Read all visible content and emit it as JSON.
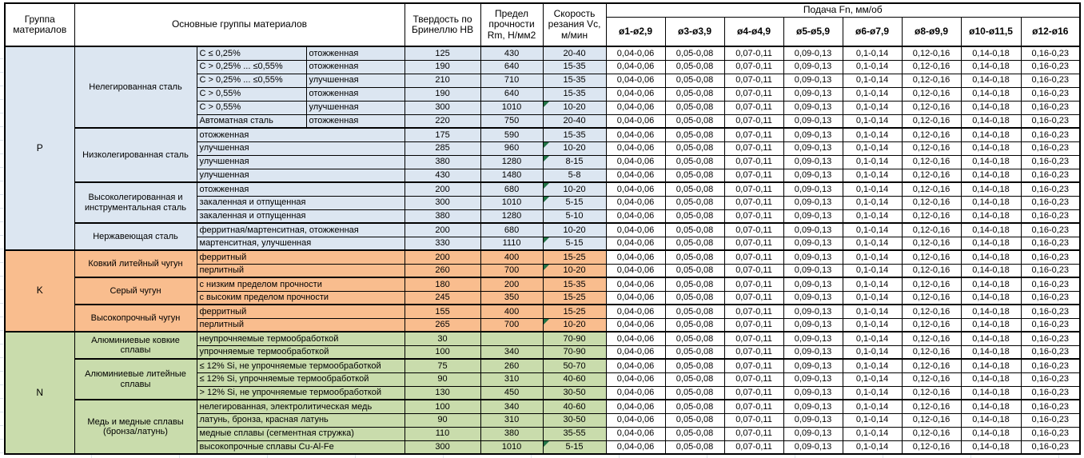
{
  "header": {
    "col_group": "Группа материалов",
    "col_main_groups": "Основные группы материалов",
    "col_hardness": "Твердость по Бринеллю HB",
    "col_strength": "Предел прочности Rm, Н/мм2",
    "col_speed": "Скорость резания Vc, м/мин",
    "feed_title": "Подача Fn, мм/об",
    "feed_columns": [
      "ø1-ø2,9",
      "ø3-ø3,9",
      "ø4-ø4,9",
      "ø5-ø5,9",
      "ø6-ø7,9",
      "ø8-ø9,9",
      "ø10-ø11,5",
      "ø12-ø16"
    ]
  },
  "feed_values": [
    "0,04-0,06",
    "0,05-0,08",
    "0,07-0,11",
    "0,09-0,13",
    "0,1-0,14",
    "0,12-0,16",
    "0,14-0,18",
    "0,16-0,23"
  ],
  "colors": {
    "section_p": "#dce6f1",
    "section_k": "#f9bd8e",
    "section_n": "#c9dcac",
    "error_indicator": "#217346",
    "border": "#000000"
  },
  "sections": [
    {
      "letter": "P",
      "key": "p",
      "subgroups": [
        {
          "name": "Нелегированная сталь",
          "rows": [
            {
              "c1": "C ≤ 0,25%",
              "c2": "отожженная",
              "hb": "125",
              "rm": "430",
              "vc": "20-40"
            },
            {
              "c1": "C > 0,25% ... ≤0,55%",
              "c2": "отожженная",
              "hb": "190",
              "rm": "640",
              "vc": "15-35"
            },
            {
              "c1": "C > 0,25% ... ≤0,55%",
              "c2": "улучшенная",
              "hb": "210",
              "rm": "710",
              "vc": "15-35"
            },
            {
              "c1": "C > 0,55%",
              "c2": "отожженная",
              "hb": "190",
              "rm": "640",
              "vc": "15-35"
            },
            {
              "c1": "C > 0,55%",
              "c2": "улучшенная",
              "hb": "300",
              "rm": "1010",
              "vc": "10-20",
              "tri": true
            },
            {
              "c1": "Автоматная сталь",
              "c2": "отожженная",
              "hb": "220",
              "rm": "750",
              "vc": "20-40"
            }
          ]
        },
        {
          "name": "Низколегированная сталь",
          "rows": [
            {
              "d": "отожженная",
              "hb": "175",
              "rm": "590",
              "vc": "15-35"
            },
            {
              "d": "улучшенная",
              "hb": "285",
              "rm": "960",
              "vc": "10-20",
              "tri": true
            },
            {
              "d": "улучшенная",
              "hb": "380",
              "rm": "1280",
              "vc": "8-15",
              "tri": true
            },
            {
              "d": "улучшенная",
              "hb": "430",
              "rm": "1480",
              "vc": "5-8"
            }
          ]
        },
        {
          "name": "Высоколегированная и инструментальная сталь",
          "rows": [
            {
              "d": "отожженная",
              "hb": "200",
              "rm": "680",
              "vc": "10-20",
              "tri": true
            },
            {
              "d": "закаленная и отпущенная",
              "hb": "300",
              "rm": "1010",
              "vc": "5-15",
              "tri": true
            },
            {
              "d": "закаленная и отпущенная",
              "hb": "380",
              "rm": "1280",
              "vc": "5-10"
            }
          ]
        },
        {
          "name": "Нержавеющая сталь",
          "rows": [
            {
              "d": "ферритная/мартенситная, отожженная",
              "hb": "200",
              "rm": "680",
              "vc": "10-20"
            },
            {
              "d": "мартенситная, улучшенная",
              "hb": "330",
              "rm": "1110",
              "vc": "5-15",
              "tri": true
            }
          ]
        }
      ]
    },
    {
      "letter": "K",
      "key": "k",
      "subgroups": [
        {
          "name": "Ковкий литейный чугун",
          "rows": [
            {
              "d": "ферритный",
              "hb": "200",
              "rm": "400",
              "vc": "15-25"
            },
            {
              "d": "перлитный",
              "hb": "260",
              "rm": "700",
              "vc": "10-20",
              "tri": true
            }
          ]
        },
        {
          "name": "Серый чугун",
          "rows": [
            {
              "d": "с низким пределом прочности",
              "hb": "180",
              "rm": "200",
              "vc": "15-35"
            },
            {
              "d": "с высоким пределом прочности",
              "hb": "245",
              "rm": "350",
              "vc": "15-25"
            }
          ]
        },
        {
          "name": "Высокопрочный чугун",
          "rows": [
            {
              "d": "ферритный",
              "hb": "155",
              "rm": "400",
              "vc": "15-25"
            },
            {
              "d": "перлитный",
              "hb": "265",
              "rm": "700",
              "vc": "10-20",
              "tri": true
            }
          ]
        }
      ]
    },
    {
      "letter": "N",
      "key": "n",
      "subgroups": [
        {
          "name": "Алюминиевые ковкие сплавы",
          "rows": [
            {
              "d": "неупрочняемые термообработкой",
              "hb": "30",
              "rm": "",
              "vc": "70-90"
            },
            {
              "d": "упрочняемые термообработкой",
              "hb": "100",
              "rm": "340",
              "vc": "70-90"
            }
          ]
        },
        {
          "name": "Алюминиевые литейные сплавы",
          "rows": [
            {
              "d": "≤ 12% Si, не упрочняемые термообработкой",
              "hb": "75",
              "rm": "260",
              "vc": "50-70"
            },
            {
              "d": "≤ 12% Si, упрочняемые термообработкой",
              "hb": "90",
              "rm": "310",
              "vc": "40-60"
            },
            {
              "d": "> 12% Si, не упрочняемые термообработкой",
              "hb": "130",
              "rm": "450",
              "vc": "30-50"
            }
          ]
        },
        {
          "name": "Медь и медные сплавы (бронза/латунь)",
          "rows": [
            {
              "d": "нелегированная, электролитическая медь",
              "hb": "100",
              "rm": "340",
              "vc": "40-60"
            },
            {
              "d": "латунь, бронза, красная латунь",
              "hb": "90",
              "rm": "310",
              "vc": "30-50"
            },
            {
              "d": "медные сплавы (сегментная стружка)",
              "hb": "110",
              "rm": "380",
              "vc": "35-55"
            },
            {
              "d": "высокопрочные сплавы Cu-Al-Fe",
              "hb": "300",
              "rm": "1010",
              "vc": "5-15",
              "tri": true
            }
          ]
        }
      ]
    }
  ]
}
